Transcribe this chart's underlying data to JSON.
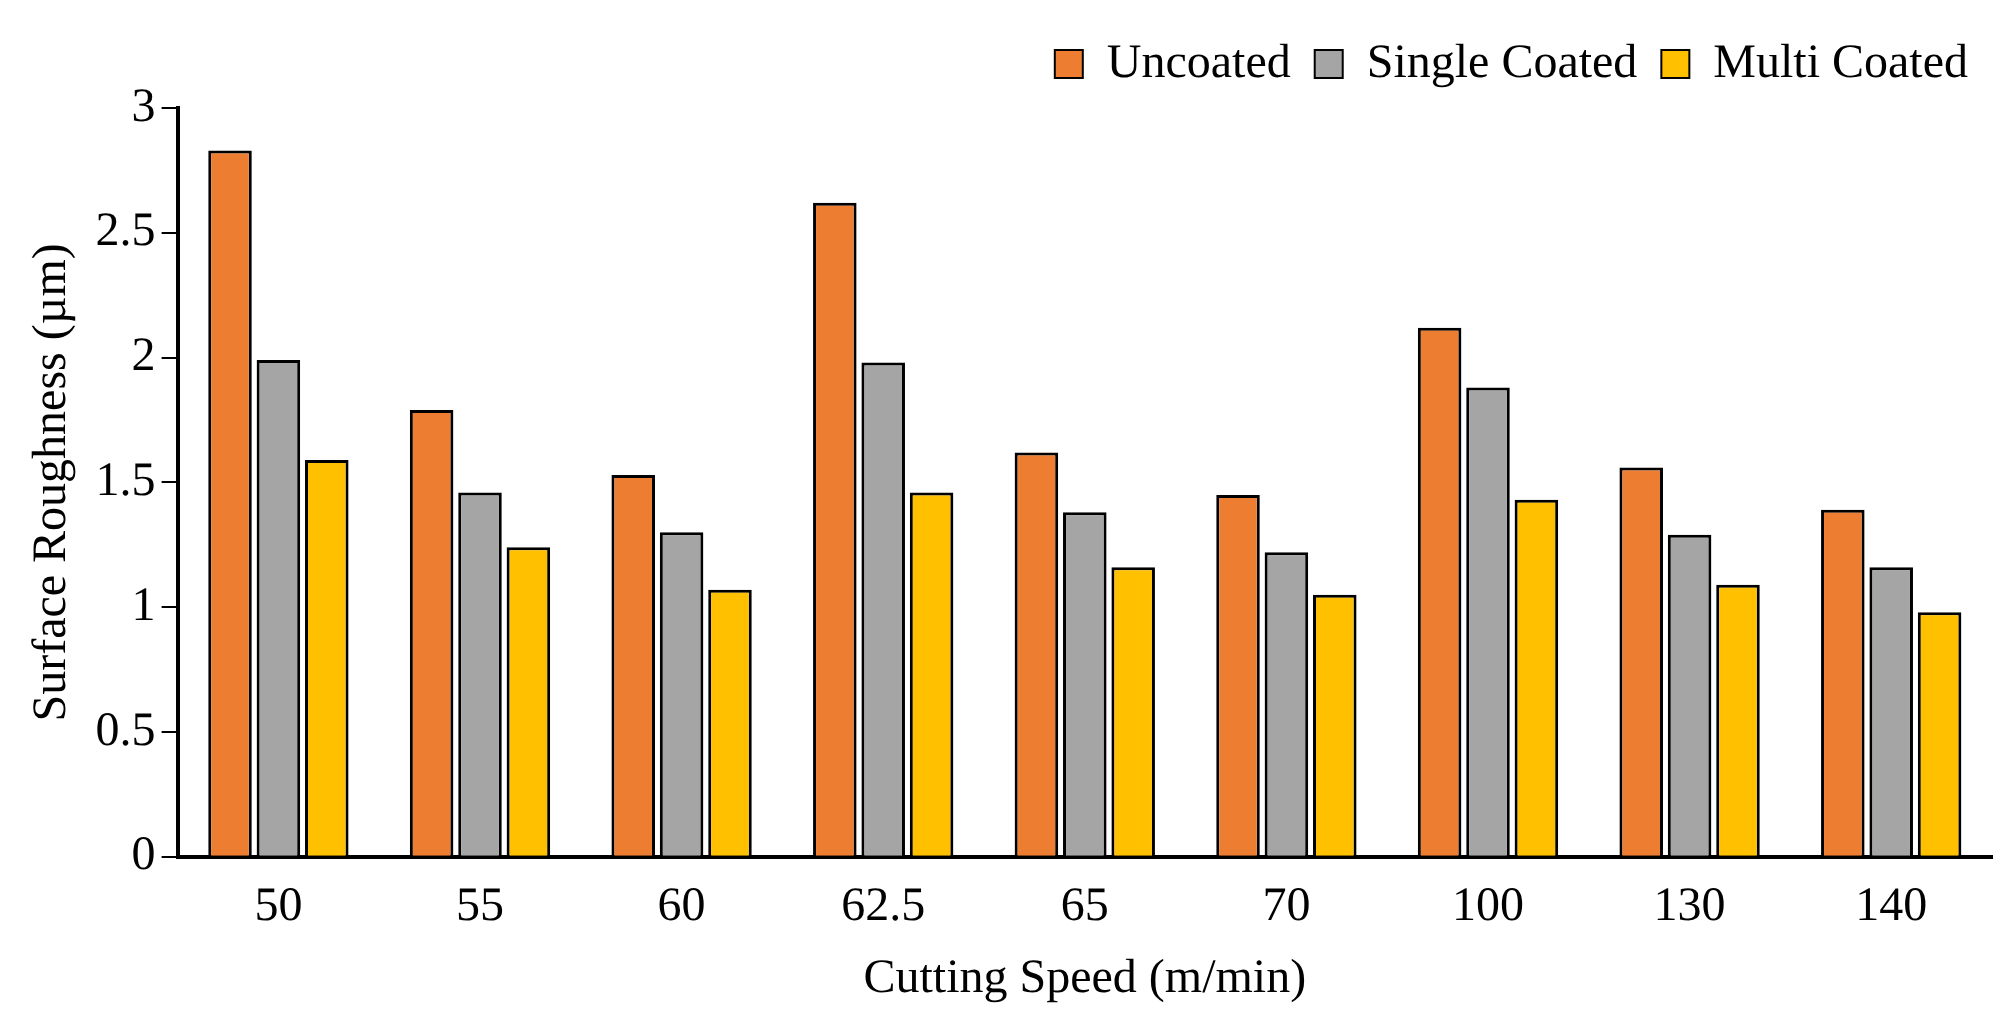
{
  "chart_data": {
    "type": "bar",
    "xlabel": "Cutting Speed (m/min)",
    "ylabel": "Surface Roughness (µm)",
    "categories": [
      "50",
      "55",
      "60",
      "62.5",
      "65",
      "70",
      "100",
      "130",
      "140"
    ],
    "series": [
      {
        "name": "Uncoated",
        "color": "#ed7d31",
        "values": [
          2.83,
          1.79,
          1.53,
          2.62,
          1.62,
          1.45,
          2.12,
          1.56,
          1.39
        ]
      },
      {
        "name": "Single Coated",
        "color": "#a5a5a5",
        "values": [
          1.99,
          1.46,
          1.3,
          1.98,
          1.38,
          1.22,
          1.88,
          1.29,
          1.16
        ]
      },
      {
        "name": "Multi Coated",
        "color": "#ffc000",
        "values": [
          1.59,
          1.24,
          1.07,
          1.46,
          1.16,
          1.05,
          1.43,
          1.09,
          0.98
        ]
      }
    ],
    "ylim": [
      0,
      3
    ],
    "yticks": [
      0,
      0.5,
      1,
      1.5,
      2,
      2.5,
      3
    ],
    "grid": false,
    "legend": "top right"
  }
}
